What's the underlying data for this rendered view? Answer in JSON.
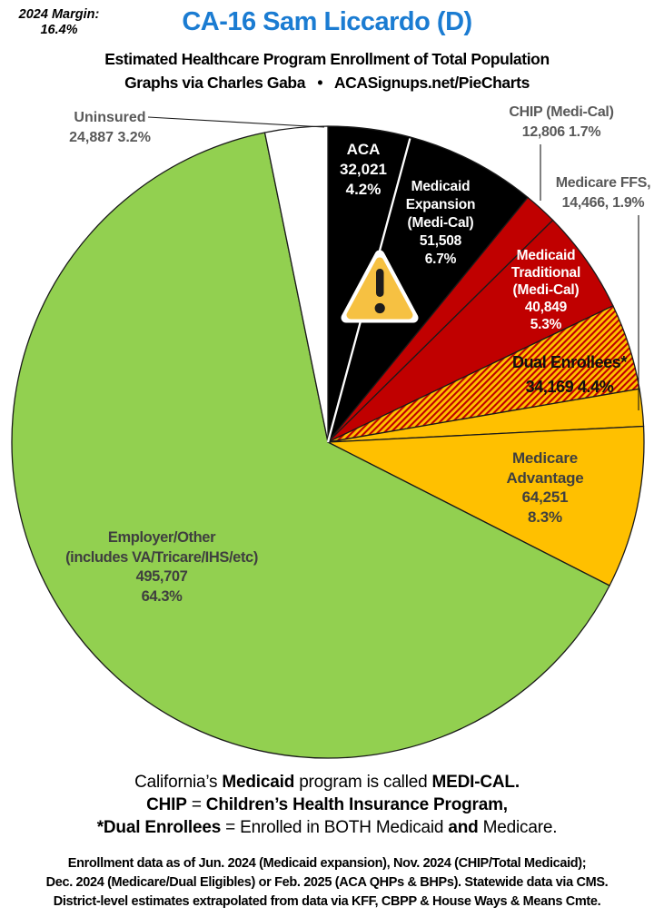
{
  "header": {
    "margin_note_lines": [
      "2024 Margin:",
      "16.4%"
    ],
    "title": "CA-16 Sam Liccardo (D)",
    "subtitle": "Estimated Healthcare Program Enrollment of Total Population",
    "attribution": "Graphs via Charles Gaba   •   ACASignups.net/PieCharts"
  },
  "colors": {
    "title_blue": "#1b7cd2",
    "outline": "#1a1a1a",
    "green": "#92D050",
    "red": "#C00000",
    "gold": "#FFC000",
    "black": "#000000",
    "white": "#FFFFFF",
    "outside_label_gray": "#595959",
    "inside_label_gray": "#3f3f3f",
    "warning_fill": "#F6C142"
  },
  "chart_data": {
    "type": "pie",
    "title": "CA-16 Sam Liccardo (D)",
    "subtitle": "Estimated Healthcare Program Enrollment of Total Population",
    "start_angle": "12 o'clock, clockwise",
    "outline_color": "#1a1a1a",
    "white_divider_after_slice": 0,
    "slices": [
      {
        "id": "aca",
        "name": "ACA",
        "value": 32021,
        "value_label": "32,021",
        "pct": 4.2,
        "fill": "#000000",
        "label_lines": [
          "ACA",
          "32,021",
          "4.2%"
        ]
      },
      {
        "id": "medicaid-expansion",
        "name": "Medicaid Expansion (Medi-Cal)",
        "value": 51508,
        "value_label": "51,508",
        "pct": 6.7,
        "fill": "#000000",
        "label_lines": [
          "Medicaid",
          "Expansion",
          "(Medi-Cal)",
          "51,508",
          "6.7%"
        ]
      },
      {
        "id": "chip",
        "name": "CHIP (Medi-Cal)",
        "value": 12806,
        "value_label": "12,806",
        "pct": 1.7,
        "fill": "#C00000",
        "label_lines": [
          "CHIP (Medi-Cal)",
          "12,806 1.7%"
        ]
      },
      {
        "id": "medicaid-traditional",
        "name": "Medicaid Traditional (Medi-Cal)",
        "value": 40849,
        "value_label": "40,849",
        "pct": 5.3,
        "fill": "#C00000",
        "label_lines": [
          "Medicaid",
          "Traditional",
          "(Medi-Cal)",
          "40,849",
          "5.3%"
        ]
      },
      {
        "id": "dual-enrollees",
        "name": "Dual Enrollees*",
        "value": 34169,
        "value_label": "34,169",
        "pct": 4.4,
        "fill": "hatch",
        "label_lines": [
          "Dual Enrollees*",
          "34,169 4.4%"
        ]
      },
      {
        "id": "medicare-ffs",
        "name": "Medicare FFS",
        "value": 14466,
        "value_label": "14,466",
        "pct": 1.9,
        "fill": "#FFC000",
        "label_lines": [
          "Medicare FFS,",
          "14,466, 1.9%"
        ]
      },
      {
        "id": "medicare-advantage",
        "name": "Medicare Advantage",
        "value": 64251,
        "value_label": "64,251",
        "pct": 8.3,
        "fill": "#FFC000",
        "label_lines": [
          "Medicare",
          "Advantage",
          "64,251",
          "8.3%"
        ]
      },
      {
        "id": "employer-other",
        "name": "Employer/Other (includes VA/Tricare/IHS/etc)",
        "value": 495707,
        "value_label": "495,707",
        "pct": 64.3,
        "fill": "#92D050",
        "label_lines": [
          "Employer/Other",
          "(includes VA/Tricare/IHS/etc)",
          "495,707",
          "64.3%"
        ]
      },
      {
        "id": "uninsured",
        "name": "Uninsured",
        "value": 24887,
        "value_label": "24,887",
        "pct": 3.2,
        "fill": "#FFFFFF",
        "label_lines": [
          "Uninsured",
          "24,887 3.2%"
        ]
      }
    ]
  },
  "notes": {
    "lines": [
      [
        {
          "t": "California’s ",
          "b": 0
        },
        {
          "t": "Medicaid",
          "b": 1
        },
        {
          "t": " program is called ",
          "b": 0
        },
        {
          "t": "MEDI-CAL.",
          "b": 1
        }
      ],
      [
        {
          "t": "CHIP",
          "b": 1
        },
        {
          "t": " = ",
          "b": 0
        },
        {
          "t": "Children’s Health Insurance Program,",
          "b": 1
        }
      ],
      [
        {
          "t": "*Dual Enrollees",
          "b": 1
        },
        {
          "t": " = Enrolled in BOTH Medicaid ",
          "b": 0
        },
        {
          "t": "and",
          "b": 1
        },
        {
          "t": " Medicare.",
          "b": 0
        }
      ]
    ]
  },
  "footer": {
    "lines": [
      "Enrollment data as of Jun. 2024 (Medicaid expansion), Nov. 2024 (CHIP/Total Medicaid);",
      "Dec. 2024 (Medicare/Dual Eligibles) or Feb. 2025 (ACA QHPs & BHPs). Statewide data via CMS.",
      "District-level estimates extrapolated from data via KFF, CBPP & House Ways & Means Cmte."
    ]
  }
}
